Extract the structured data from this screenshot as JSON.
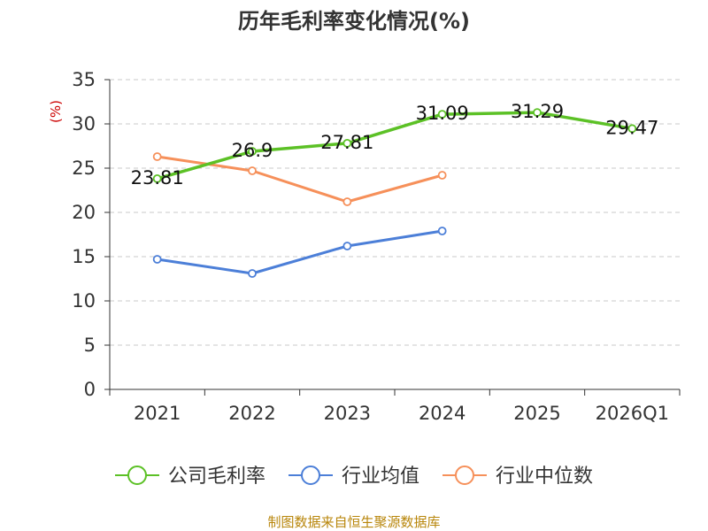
{
  "chart_data": {
    "type": "line",
    "title": "历年毛利率变化情况(%)",
    "xlabel": "",
    "ylabel": "(%)",
    "categories": [
      "2021",
      "2022",
      "2023",
      "2024",
      "2025",
      "2026Q1"
    ],
    "ylim": [
      0,
      35
    ],
    "yticks": [
      0,
      5,
      10,
      15,
      20,
      25,
      30,
      35
    ],
    "grid": true,
    "legend_position": "bottom",
    "series": [
      {
        "name": "公司毛利率",
        "color": "#5cc126",
        "values": [
          23.81,
          26.9,
          27.81,
          31.09,
          31.29,
          29.47
        ],
        "labels": [
          "23.81",
          "26.9",
          "27.81",
          "31.09",
          "31.29",
          "29.47"
        ],
        "show_labels": true
      },
      {
        "name": "行业均值",
        "color": "#4c7fd8",
        "values": [
          14.7,
          13.1,
          16.2,
          17.9,
          null,
          null
        ],
        "show_labels": false
      },
      {
        "name": "行业中位数",
        "color": "#f6905a",
        "values": [
          26.3,
          24.7,
          21.2,
          24.2,
          null,
          null
        ],
        "show_labels": false
      }
    ]
  },
  "source": "制图数据来自恒生聚源数据库"
}
